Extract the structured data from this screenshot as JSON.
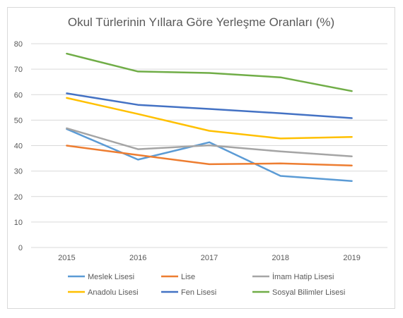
{
  "chart_data": {
    "type": "line",
    "title": "Okul Türlerinin Yıllara Göre Yerleşme Oranları (%)",
    "xlabel": "",
    "ylabel": "",
    "categories": [
      "2015",
      "2016",
      "2017",
      "2018",
      "2019"
    ],
    "ylim": [
      0,
      80
    ],
    "yticks": [
      "0",
      "10",
      "20",
      "30",
      "40",
      "50",
      "60",
      "70",
      "80"
    ],
    "grid": true,
    "legend_position": "bottom",
    "series": [
      {
        "name": "Meslek Lisesi",
        "color": "#5b9bd5",
        "values": [
          46.5,
          34.5,
          41.3,
          28.1,
          26.1
        ]
      },
      {
        "name": "Lise",
        "color": "#ed7d31",
        "values": [
          40.0,
          36.3,
          32.7,
          33.0,
          32.2
        ]
      },
      {
        "name": "İmam Hatip Lisesi",
        "color": "#a5a5a5",
        "values": [
          46.8,
          38.6,
          40.1,
          37.7,
          35.8
        ]
      },
      {
        "name": "Anadolu Lisesi",
        "color": "#ffc000",
        "values": [
          58.7,
          52.4,
          45.8,
          42.8,
          43.4
        ]
      },
      {
        "name": "Fen Lisesi",
        "color": "#4472c4",
        "values": [
          60.5,
          56.0,
          54.4,
          52.7,
          50.8
        ]
      },
      {
        "name": "Sosyal Bilimler Lisesi",
        "color": "#70ad47",
        "values": [
          76.1,
          69.1,
          68.5,
          66.8,
          61.4
        ]
      }
    ]
  }
}
